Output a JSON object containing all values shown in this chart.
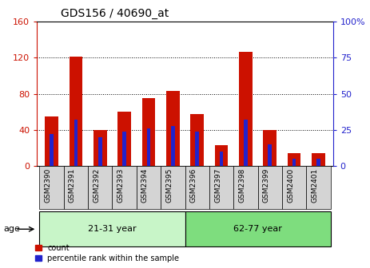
{
  "title": "GDS156 / 40690_at",
  "samples": [
    "GSM2390",
    "GSM2391",
    "GSM2392",
    "GSM2393",
    "GSM2394",
    "GSM2395",
    "GSM2396",
    "GSM2397",
    "GSM2398",
    "GSM2399",
    "GSM2400",
    "GSM2401"
  ],
  "count_values": [
    55,
    121,
    40,
    60,
    75,
    83,
    58,
    23,
    126,
    40,
    14,
    14
  ],
  "percentile_values": [
    22,
    32,
    20,
    24,
    26,
    28,
    24,
    10,
    32,
    15,
    5,
    5
  ],
  "groups": [
    {
      "label": "21-31 year",
      "start": 0,
      "end": 6
    },
    {
      "label": "62-77 year",
      "start": 6,
      "end": 12
    }
  ],
  "bar_width": 0.55,
  "blue_bar_width": 0.15,
  "count_color": "#CC1100",
  "percentile_color": "#2222CC",
  "left_ylim": [
    0,
    160
  ],
  "right_ylim": [
    0,
    100
  ],
  "left_yticks": [
    0,
    40,
    80,
    120,
    160
  ],
  "right_yticks": [
    0,
    25,
    50,
    75,
    100
  ],
  "right_yticklabels": [
    "0",
    "25",
    "50",
    "75",
    "100%"
  ],
  "axis_label_color_left": "#CC1100",
  "axis_label_color_right": "#2222CC",
  "legend_count_label": "count",
  "legend_percentile_label": "percentile rank within the sample",
  "age_label": "age",
  "group_bg_color_1": "#c8f5c8",
  "group_bg_color_2": "#7edd7e",
  "xtick_bg_color": "#d4d4d4"
}
